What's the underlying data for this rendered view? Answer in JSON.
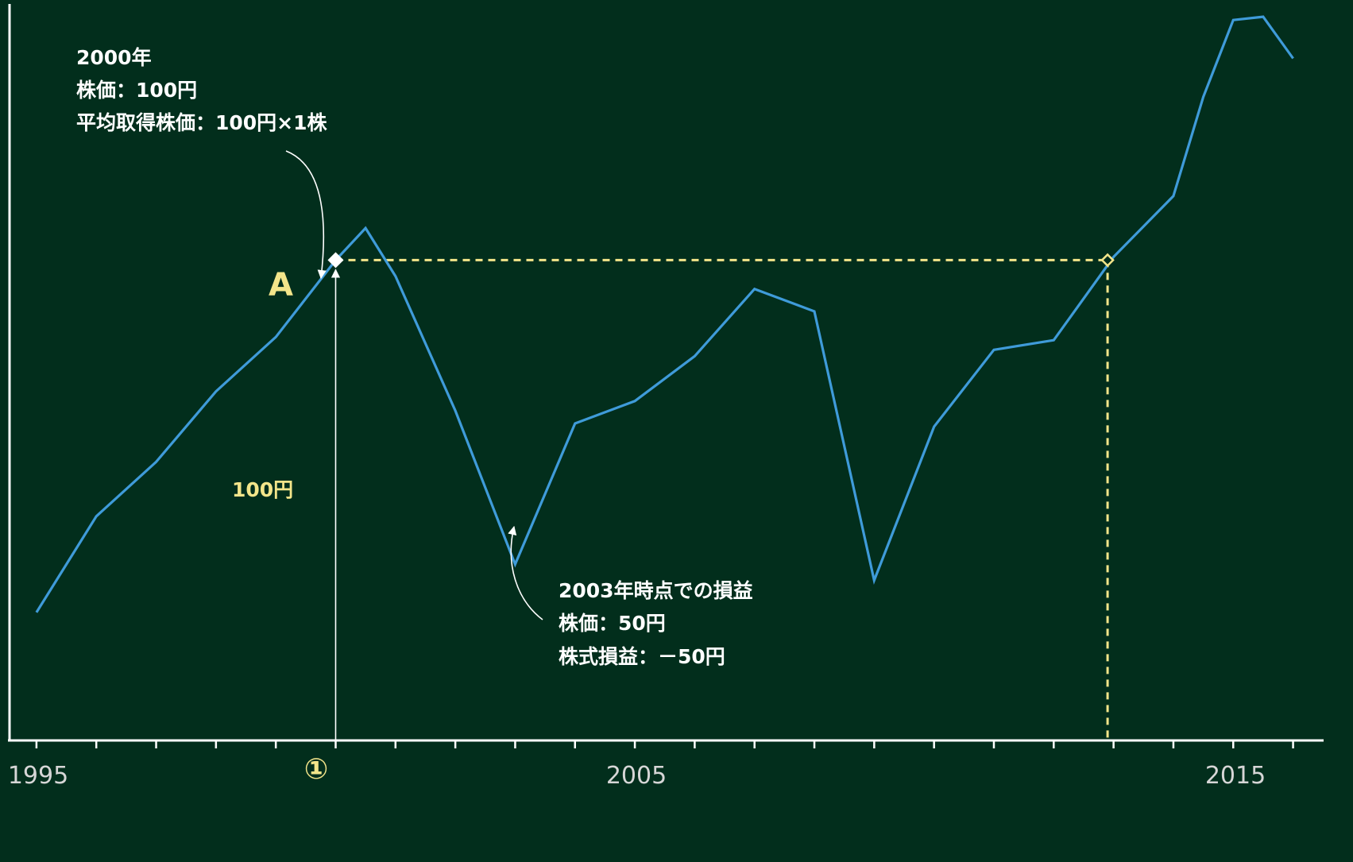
{
  "chart_data": {
    "type": "line",
    "x": [
      1995,
      1996,
      1997,
      1998,
      1999,
      2000,
      2000.5,
      2001,
      2002,
      2003,
      2004,
      2005,
      2006,
      2007,
      2008,
      2009,
      2010,
      2011,
      2012,
      2013,
      2014,
      2014.5,
      2015,
      2015.5,
      2016
    ],
    "values": [
      40,
      70,
      87,
      109,
      126,
      150,
      160,
      145,
      103,
      55,
      99,
      106,
      120,
      141,
      134,
      50,
      98,
      122,
      125,
      151,
      170,
      201,
      225,
      226,
      213
    ],
    "series_color": "#3f9bd9",
    "xlim": [
      1994.55,
      2016.55
    ],
    "ylim": [
      0,
      230
    ],
    "x_ticks": [
      1995,
      2005,
      2015
    ],
    "x_tick_labels": [
      "1995",
      "2005",
      "2015"
    ],
    "minor_tick_years": [
      1995,
      1996,
      1997,
      1998,
      1999,
      2000,
      2001,
      2002,
      2003,
      2004,
      2005,
      2006,
      2007,
      2008,
      2009,
      2010,
      2011,
      2012,
      2013,
      2014,
      2015,
      2016
    ],
    "reference_value": 150,
    "reference_start_x": 2000,
    "reference_end_x": 2012.9,
    "annotations": {
      "point_label": "A",
      "start_marker": "①",
      "value_label": "100円",
      "top_note": [
        "2000年",
        "株価：100円",
        "平均取得株価：100円×1株"
      ],
      "bottom_note": [
        "2003年時点での損益",
        "株価：50円",
        "株式損益：－50円"
      ]
    },
    "colors": {
      "background": "#022e1c",
      "axis": "#ffffff",
      "highlight": "#f3e58a",
      "text": "#ffffff"
    }
  }
}
